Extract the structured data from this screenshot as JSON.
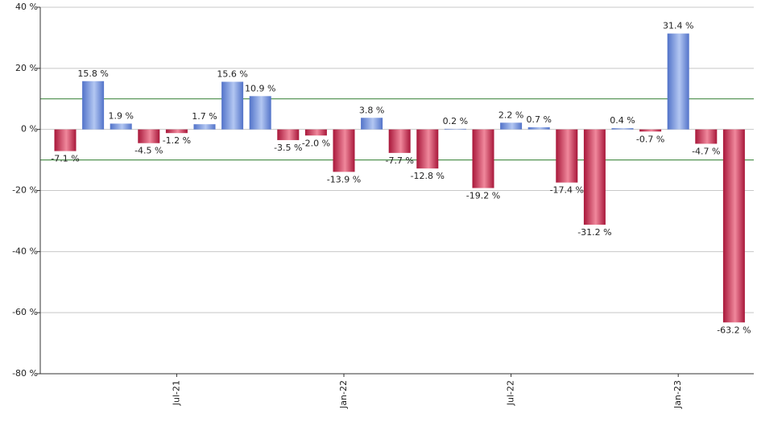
{
  "chart_data": {
    "type": "bar",
    "categories": [
      null,
      null,
      null,
      null,
      "Jul-21",
      null,
      null,
      null,
      null,
      null,
      "Jan-22",
      null,
      null,
      null,
      null,
      null,
      "Jul-22",
      null,
      null,
      null,
      null,
      null,
      "Jan-23",
      null,
      null
    ],
    "values": [
      -7.1,
      15.8,
      1.9,
      -4.5,
      -1.2,
      1.7,
      15.6,
      10.9,
      -3.5,
      -2.0,
      -13.9,
      3.8,
      -7.7,
      -12.8,
      0.2,
      -19.2,
      2.2,
      0.7,
      -17.4,
      -31.2,
      0.4,
      -0.7,
      31.4,
      -4.7,
      -63.2
    ],
    "value_labels": [
      "-7.1 %",
      "15.8 %",
      "1.9 %",
      "-4.5 %",
      "-1.2 %",
      "1.7 %",
      "15.6 %",
      "10.9 %",
      "-3.5 %",
      "-2.0 %",
      "-13.9 %",
      "3.8 %",
      "-7.7 %",
      "-12.8 %",
      "0.2 %",
      "-19.2 %",
      "2.2 %",
      "0.7 %",
      "-17.4 %",
      "-31.2 %",
      "0.4 %",
      "-0.7 %",
      "31.4 %",
      "-4.7 %",
      "-63.2 %"
    ],
    "positive_colors": [
      "#5273c9",
      "#b3c7f2"
    ],
    "negative_colors": [
      "#a8173a",
      "#f0889c"
    ],
    "ylim": [
      -80,
      40
    ],
    "yticks": [
      {
        "value": -80,
        "label": "-80 %"
      },
      {
        "value": -60,
        "label": "-60 %"
      },
      {
        "value": -40,
        "label": "-40 %"
      },
      {
        "value": -20,
        "label": "-20 %"
      },
      {
        "value": 0,
        "label": "0 %"
      },
      {
        "value": 20,
        "label": "20 %"
      },
      {
        "value": 40,
        "label": "40 %"
      }
    ],
    "reference_lines": [
      10,
      -10
    ],
    "reference_color": "#2e7d2e",
    "grid": true
  }
}
